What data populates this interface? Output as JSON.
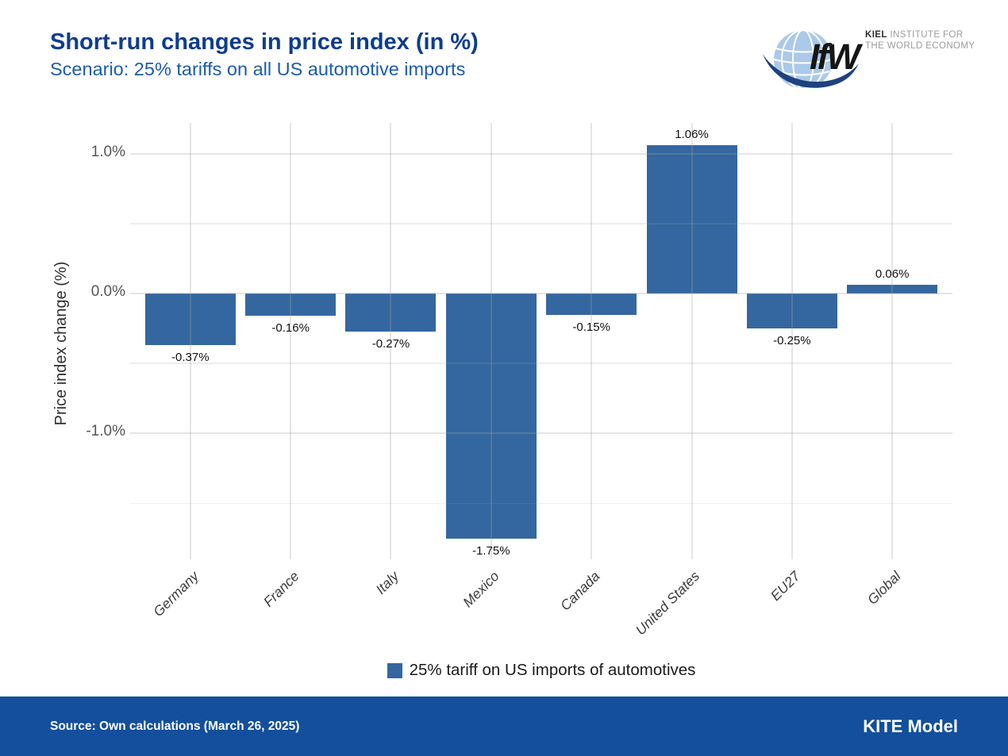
{
  "header": {
    "title": "Short-run changes in price index (in %)",
    "subtitle": "Scenario: 25% tariffs on all US automotive imports"
  },
  "logo": {
    "wordmark": "IfW",
    "institute_bold": "KIEL",
    "institute_rest": " INSTITUTE FOR",
    "institute_line2": "THE WORLD ECONOMY"
  },
  "chart_data": {
    "type": "bar",
    "title": "Short-run changes in price index (in %)",
    "subtitle": "Scenario: 25% tariffs on all US automotive imports",
    "categories": [
      "Germany",
      "France",
      "Italy",
      "Mexico",
      "Canada",
      "United States",
      "EU27",
      "Global"
    ],
    "values": [
      -0.37,
      -0.16,
      -0.27,
      -1.75,
      -0.15,
      1.06,
      -0.25,
      0.06
    ],
    "value_labels": [
      "-0.37%",
      "-0.16%",
      "-0.27%",
      "-1.75%",
      "-0.15%",
      "1.06%",
      "-0.25%",
      "0.06%"
    ],
    "series_name": "25% tariff on US imports of automotives",
    "xlabel": "",
    "ylabel": "Price index change (%)",
    "ylim": [
      -1.9,
      1.22
    ],
    "y_ticks": [
      {
        "value": 1.0,
        "label": "1.0%"
      },
      {
        "value": 0.0,
        "label": "0.0%"
      },
      {
        "value": -1.0,
        "label": "-1.0%"
      }
    ],
    "y_minor_gridlines": [
      0.5,
      -0.5,
      -1.5
    ],
    "grid": true,
    "legend_position": "bottom",
    "bar_color": "#34679f"
  },
  "legend": {
    "swatch_color": "#34679f",
    "label": "25% tariff on US imports of automotives"
  },
  "footer": {
    "source": "Source: Own calculations (March 26, 2025)",
    "model": "KITE Model"
  },
  "colors": {
    "title_blue": "#0d3d8f",
    "subtitle_blue": "#1d5ba9",
    "footer_bg": "#134f9c",
    "bar_blue": "#34679f",
    "grid_major": "rgba(160,160,160,0.28)",
    "grid_minor": "rgba(160,160,160,0.18)",
    "globe_blue": "#abc9e8",
    "swoosh_navy": "#1d4280"
  }
}
